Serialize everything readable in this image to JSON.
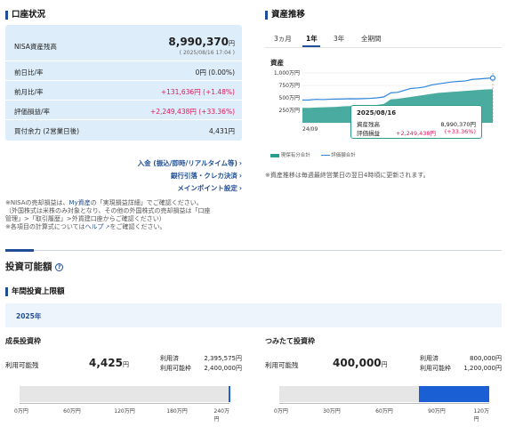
{
  "account": {
    "title": "口座状況",
    "nisa_label": "NISA資産残高",
    "nisa_value": "8,990,370",
    "nisa_unit": "円",
    "nisa_timestamp": "( 2025/08/16 17:04 )",
    "rows": [
      {
        "label": "前日比/率",
        "value": "0円 (0.00%)",
        "tone": "neutral"
      },
      {
        "label": "前月比/率",
        "value": "+131,636円 (+1.48%)",
        "tone": "pos"
      },
      {
        "label": "評価損益/率",
        "value": "+2,249,438円 (+33.36%)",
        "tone": "pos"
      },
      {
        "label": "買付余力 (2営業日後)",
        "value": "4,431円",
        "tone": "neutral"
      }
    ],
    "links": [
      "入金 (振込/即時/リアルタイム等)",
      "銀行引落・クレカ決済",
      "メインポイント設定"
    ],
    "notes": {
      "line1_a": "※NISAの売却損益は、",
      "line1_link": "My資産",
      "line1_b": "の「実現損益詳細」でご確認ください。",
      "line2": "（外国株式は米株のみ対象となり、その他の外国株式の売却損益は「口座",
      "line3": "管理」>「取引履歴」>外貨建口座からご確認ください）",
      "line4_a": "※各項目の計算式については",
      "line4_link": "ヘルプ",
      "line4_b": "をご確認ください。"
    }
  },
  "history": {
    "title": "資産推移",
    "tabs": [
      "3ヵ月",
      "1年",
      "3年",
      "全期間"
    ],
    "active_tab": "1年",
    "y_label": "資産",
    "y_ticks": [
      "1,000万円",
      "750万円",
      "500万円",
      "250万円"
    ],
    "x_start_label": "24/09",
    "legend_a": "現保有分合計",
    "legend_b": "評価額合計",
    "tooltip": {
      "date": "2025/08/16",
      "asset_label": "資産残高",
      "asset_value": "8,990,370円",
      "pl_label": "評価損益",
      "pl_value": "+2,249,438円",
      "pl_rate": "(+33.36%)"
    },
    "note": "※資産推移は毎週最終営業日の翌日4時頃に更新されます。",
    "colors": {
      "valuation": "#2e86de",
      "holding": "#2a9d8f"
    },
    "chart_data": {
      "type": "area",
      "y_range_man_yen": [
        0,
        1000
      ],
      "series": [
        {
          "name": "評価額合計",
          "values": [
            455,
            458,
            470,
            465,
            472,
            475,
            478,
            482,
            480,
            485,
            490,
            500,
            520,
            600,
            610,
            650,
            690,
            700,
            720,
            760,
            780,
            800,
            820,
            830,
            840,
            870,
            880,
            890,
            899
          ]
        },
        {
          "name": "現保有分合計",
          "values": [
            300,
            300,
            305,
            310,
            315,
            320,
            330,
            335,
            340,
            345,
            350,
            360,
            380,
            470,
            480,
            500,
            520,
            540,
            560,
            580,
            600,
            610,
            620,
            630,
            640,
            650,
            660,
            670,
            674
          ]
        }
      ]
    }
  },
  "investable": {
    "title": "投資可能額",
    "help_icon": "help-circle-icon",
    "limit_title": "年間投資上限額",
    "year_tab": "2025年",
    "growth": {
      "title": "成長投資枠",
      "avail_label": "利用可能残",
      "avail_value": "4,425",
      "unit": "円",
      "used_label": "利用済",
      "used_value": "2,395,575円",
      "cap_label": "利用可能枠",
      "cap_value": "2,400,000円",
      "ticks": [
        "0万円",
        "60万円",
        "120万円",
        "180万円",
        "240万円"
      ],
      "used_fraction": 0.998
    },
    "tsumitate": {
      "title": "つみたて投資枠",
      "avail_label": "利用可能残",
      "avail_value": "400,000",
      "unit": "円",
      "used_label": "利用済",
      "used_value": "800,000円",
      "cap_label": "利用可能枠",
      "cap_value": "1,200,000円",
      "ticks": [
        "0万円",
        "30万円",
        "60万円",
        "90万円",
        "120万円"
      ],
      "used_fraction": 0.6667
    }
  }
}
